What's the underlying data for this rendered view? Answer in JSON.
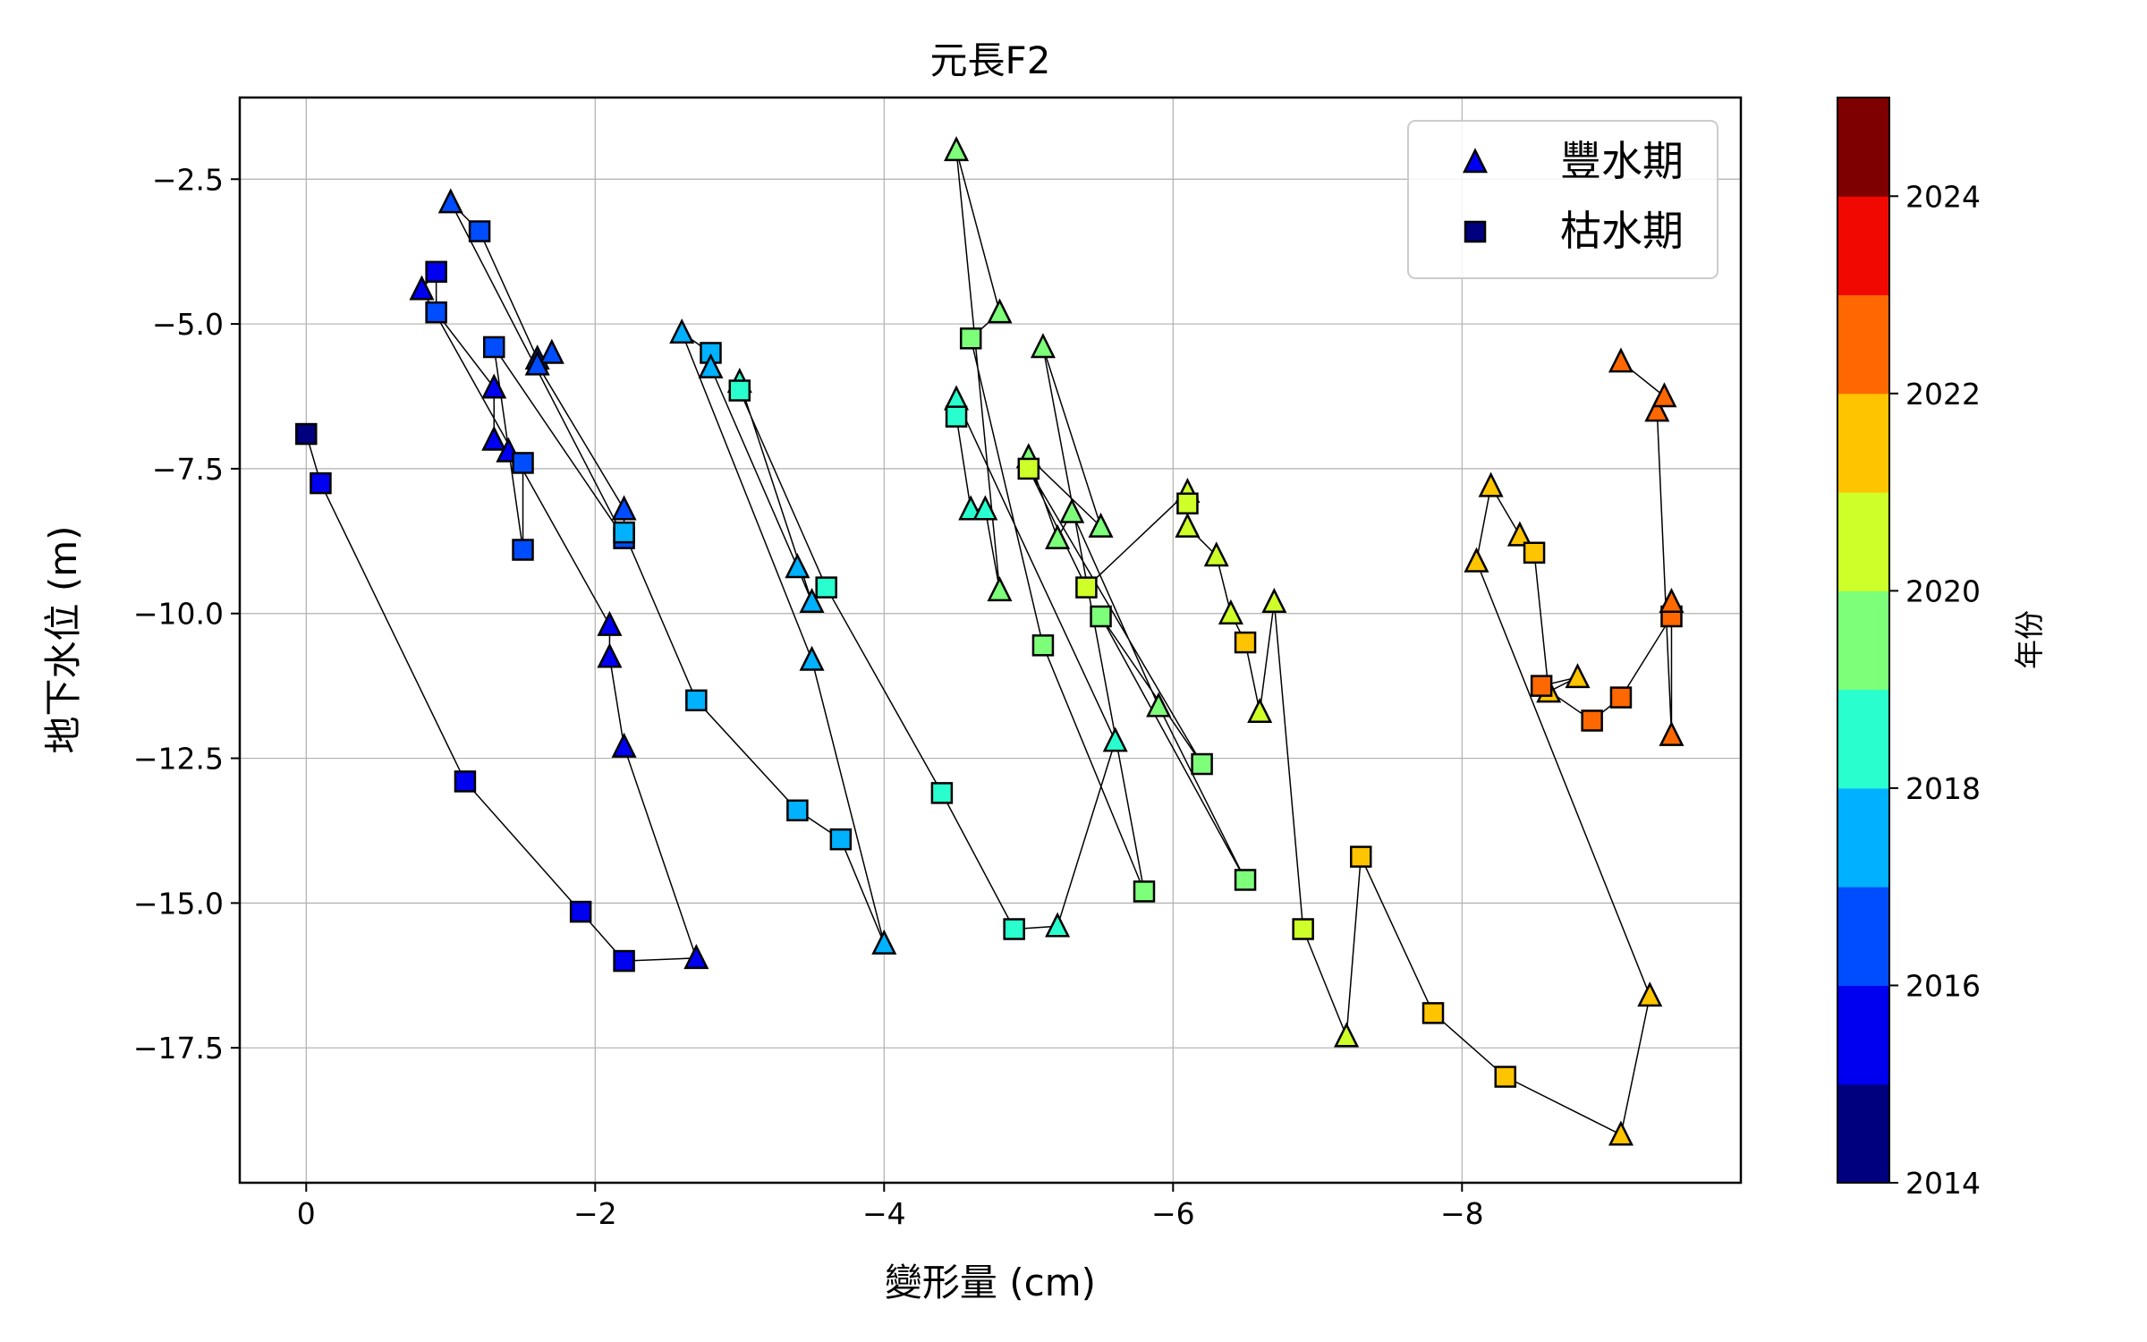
{
  "chart_data": {
    "type": "scatter",
    "title": "元長F2",
    "xlabel": "變形量 (cm)",
    "ylabel": "地下水位 (m)",
    "xlim": [
      0.46,
      -9.93
    ],
    "ylim": [
      -19.83,
      -1.09
    ],
    "x_inverted": true,
    "grid": true,
    "xticks": [
      0,
      -2,
      -4,
      -6,
      -8
    ],
    "xtick_labels": [
      "0",
      "−2",
      "−4",
      "−6",
      "−8"
    ],
    "yticks": [
      -2.5,
      -5.0,
      -7.5,
      -10.0,
      -12.5,
      -15.0,
      -17.5
    ],
    "ytick_labels": [
      "−2.5",
      "−5.0",
      "−7.5",
      "−10.0",
      "−12.5",
      "−15.0",
      "−17.5"
    ],
    "legend": {
      "placement": "top-right",
      "entries": [
        {
          "label": "豐水期",
          "marker": "triangle"
        },
        {
          "label": "枯水期",
          "marker": "square"
        }
      ]
    },
    "colorbar": {
      "label": "年份",
      "range": [
        2014,
        2025
      ],
      "ticks": [
        2014,
        2016,
        2018,
        2020,
        2022,
        2024
      ],
      "tick_labels": [
        "2014",
        "2016",
        "2018",
        "2020",
        "2022",
        "2024"
      ],
      "colors": [
        "#00007f",
        "#0000f1",
        "#004dff",
        "#00b1ff",
        "#29ffce",
        "#7dff7a",
        "#ceff29",
        "#ffc400",
        "#ff6800",
        "#f10800",
        "#7f0000"
      ]
    },
    "points": [
      {
        "x": 0.0,
        "y": -6.9,
        "m": "s",
        "year": 2014.9
      },
      {
        "x": -0.1,
        "y": -7.75,
        "m": "s",
        "year": 2015.0
      },
      {
        "x": -1.1,
        "y": -12.9,
        "m": "s",
        "year": 2015.1
      },
      {
        "x": -1.9,
        "y": -15.15,
        "m": "s",
        "year": 2015.2
      },
      {
        "x": -2.2,
        "y": -16.0,
        "m": "s",
        "year": 2015.3
      },
      {
        "x": -2.7,
        "y": -15.95,
        "m": "t",
        "year": 2015.4
      },
      {
        "x": -2.2,
        "y": -12.3,
        "m": "t",
        "year": 2015.5
      },
      {
        "x": -2.1,
        "y": -10.75,
        "m": "t",
        "year": 2015.6
      },
      {
        "x": -2.1,
        "y": -10.2,
        "m": "t",
        "year": 2015.6
      },
      {
        "x": -0.8,
        "y": -4.4,
        "m": "t",
        "year": 2015.7
      },
      {
        "x": -0.9,
        "y": -4.1,
        "m": "s",
        "year": 2015.8
      },
      {
        "x": -0.9,
        "y": -4.8,
        "m": "s",
        "year": 2016.0
      },
      {
        "x": -1.3,
        "y": -6.1,
        "m": "t",
        "year": 2015.8
      },
      {
        "x": -1.3,
        "y": -7.0,
        "m": "t",
        "year": 2015.8
      },
      {
        "x": -1.4,
        "y": -7.2,
        "m": "t",
        "year": 2015.8
      },
      {
        "x": -1.5,
        "y": -7.4,
        "m": "s",
        "year": 2016.1
      },
      {
        "x": -1.5,
        "y": -8.9,
        "m": "s",
        "year": 2016.2
      },
      {
        "x": -1.3,
        "y": -5.4,
        "m": "s",
        "year": 2016.3
      },
      {
        "x": -2.2,
        "y": -8.7,
        "m": "s",
        "year": 2016.4
      },
      {
        "x": -1.0,
        "y": -2.9,
        "m": "t",
        "year": 2016.4
      },
      {
        "x": -1.2,
        "y": -3.4,
        "m": "s",
        "year": 2016.5
      },
      {
        "x": -1.6,
        "y": -5.6,
        "m": "t",
        "year": 2016.6
      },
      {
        "x": -1.7,
        "y": -5.5,
        "m": "t",
        "year": 2016.6
      },
      {
        "x": -1.6,
        "y": -5.7,
        "m": "t",
        "year": 2016.7
      },
      {
        "x": -2.2,
        "y": -8.2,
        "m": "t",
        "year": 2016.8
      },
      {
        "x": -2.2,
        "y": -8.6,
        "m": "s",
        "year": 2017.2
      },
      {
        "x": -2.7,
        "y": -11.5,
        "m": "s",
        "year": 2017.3
      },
      {
        "x": -3.4,
        "y": -13.4,
        "m": "s",
        "year": 2017.5
      },
      {
        "x": -3.7,
        "y": -13.9,
        "m": "s",
        "year": 2017.6
      },
      {
        "x": -4.0,
        "y": -15.7,
        "m": "t",
        "year": 2017.7
      },
      {
        "x": -3.5,
        "y": -10.8,
        "m": "t",
        "year": 2017.7
      },
      {
        "x": -2.6,
        "y": -5.15,
        "m": "t",
        "year": 2017.8
      },
      {
        "x": -2.8,
        "y": -5.5,
        "m": "s",
        "year": 2017.9
      },
      {
        "x": -2.8,
        "y": -5.75,
        "m": "t",
        "year": 2017.9
      },
      {
        "x": -3.4,
        "y": -9.2,
        "m": "t",
        "year": 2017.9
      },
      {
        "x": -3.5,
        "y": -9.8,
        "m": "t",
        "year": 2017.9
      },
      {
        "x": -3.0,
        "y": -6.0,
        "m": "t",
        "year": 2018.2
      },
      {
        "x": -3.0,
        "y": -6.15,
        "m": "s",
        "year": 2018.3
      },
      {
        "x": -3.6,
        "y": -9.55,
        "m": "s",
        "year": 2018.4
      },
      {
        "x": -4.4,
        "y": -13.1,
        "m": "s",
        "year": 2018.5
      },
      {
        "x": -4.9,
        "y": -15.45,
        "m": "s",
        "year": 2018.6
      },
      {
        "x": -5.2,
        "y": -15.4,
        "m": "t",
        "year": 2018.7
      },
      {
        "x": -5.6,
        "y": -12.2,
        "m": "t",
        "year": 2018.7
      },
      {
        "x": -4.5,
        "y": -6.3,
        "m": "t",
        "year": 2018.6
      },
      {
        "x": -4.5,
        "y": -6.6,
        "m": "s",
        "year": 2018.8
      },
      {
        "x": -4.6,
        "y": -8.2,
        "m": "t",
        "year": 2018.8
      },
      {
        "x": -4.7,
        "y": -8.2,
        "m": "t",
        "year": 2018.9
      },
      {
        "x": -4.8,
        "y": -9.6,
        "m": "t",
        "year": 2019.1
      },
      {
        "x": -4.5,
        "y": -2.0,
        "m": "t",
        "year": 2019.4
      },
      {
        "x": -4.8,
        "y": -4.8,
        "m": "t",
        "year": 2019.4
      },
      {
        "x": -4.6,
        "y": -5.25,
        "m": "s",
        "year": 2019.5
      },
      {
        "x": -5.1,
        "y": -10.55,
        "m": "s",
        "year": 2019.5
      },
      {
        "x": -5.8,
        "y": -14.8,
        "m": "s",
        "year": 2019.5
      },
      {
        "x": -5.1,
        "y": -5.4,
        "m": "t",
        "year": 2019.5
      },
      {
        "x": -5.5,
        "y": -8.5,
        "m": "t",
        "year": 2019.5
      },
      {
        "x": -5.0,
        "y": -7.3,
        "m": "t",
        "year": 2019.6
      },
      {
        "x": -5.2,
        "y": -8.7,
        "m": "t",
        "year": 2019.0
      },
      {
        "x": -5.3,
        "y": -8.25,
        "m": "t",
        "year": 2019.0
      },
      {
        "x": -5.9,
        "y": -11.6,
        "m": "t",
        "year": 2019.3
      },
      {
        "x": -6.5,
        "y": -14.6,
        "m": "s",
        "year": 2019.6
      },
      {
        "x": -5.5,
        "y": -10.05,
        "m": "s",
        "year": 2019.6
      },
      {
        "x": -6.2,
        "y": -12.6,
        "m": "s",
        "year": 2019.8
      },
      {
        "x": -5.0,
        "y": -7.5,
        "m": "s",
        "year": 2020.3
      },
      {
        "x": -5.4,
        "y": -9.55,
        "m": "s",
        "year": 2020.4
      },
      {
        "x": -6.1,
        "y": -7.9,
        "m": "t",
        "year": 2020.2
      },
      {
        "x": -6.1,
        "y": -8.1,
        "m": "s",
        "year": 2020.4
      },
      {
        "x": -6.1,
        "y": -8.5,
        "m": "t",
        "year": 2020.3
      },
      {
        "x": -6.3,
        "y": -9.0,
        "m": "t",
        "year": 2020.4
      },
      {
        "x": -6.4,
        "y": -10.0,
        "m": "t",
        "year": 2020.5
      },
      {
        "x": -6.5,
        "y": -10.5,
        "m": "s",
        "year": 2021.1
      },
      {
        "x": -6.6,
        "y": -11.7,
        "m": "t",
        "year": 2020.6
      },
      {
        "x": -6.7,
        "y": -9.8,
        "m": "t",
        "year": 2020.7
      },
      {
        "x": -6.9,
        "y": -15.45,
        "m": "s",
        "year": 2020.7
      },
      {
        "x": -7.2,
        "y": -17.3,
        "m": "t",
        "year": 2020.8
      },
      {
        "x": -7.3,
        "y": -14.2,
        "m": "s",
        "year": 2021.3
      },
      {
        "x": -7.8,
        "y": -16.9,
        "m": "s",
        "year": 2021.4
      },
      {
        "x": -8.3,
        "y": -18.0,
        "m": "s",
        "year": 2021.5
      },
      {
        "x": -9.1,
        "y": -19.0,
        "m": "t",
        "year": 2021.6
      },
      {
        "x": -9.3,
        "y": -16.6,
        "m": "t",
        "year": 2021.6
      },
      {
        "x": -8.1,
        "y": -9.1,
        "m": "t",
        "year": 2021.5
      },
      {
        "x": -8.2,
        "y": -7.8,
        "m": "t",
        "year": 2021.5
      },
      {
        "x": -8.4,
        "y": -8.65,
        "m": "t",
        "year": 2021.6
      },
      {
        "x": -8.5,
        "y": -8.95,
        "m": "s",
        "year": 2021.7
      },
      {
        "x": -8.6,
        "y": -11.35,
        "m": "t",
        "year": 2021.7
      },
      {
        "x": -8.8,
        "y": -11.1,
        "m": "t",
        "year": 2021.8
      },
      {
        "x": -8.55,
        "y": -11.25,
        "m": "s",
        "year": 2022.4
      },
      {
        "x": -8.9,
        "y": -11.85,
        "m": "s",
        "year": 2022.5
      },
      {
        "x": -9.1,
        "y": -11.45,
        "m": "s",
        "year": 2022.6
      },
      {
        "x": -9.45,
        "y": -10.05,
        "m": "s",
        "year": 2022.7
      },
      {
        "x": -9.45,
        "y": -9.8,
        "m": "t",
        "year": 2022.7
      },
      {
        "x": -9.45,
        "y": -12.1,
        "m": "t",
        "year": 2022.8
      },
      {
        "x": -9.35,
        "y": -6.5,
        "m": "t",
        "year": 2022.8
      },
      {
        "x": -9.4,
        "y": -6.25,
        "m": "t",
        "year": 2022.9
      },
      {
        "x": -9.1,
        "y": -5.65,
        "m": "t",
        "year": 2022.9
      }
    ]
  }
}
